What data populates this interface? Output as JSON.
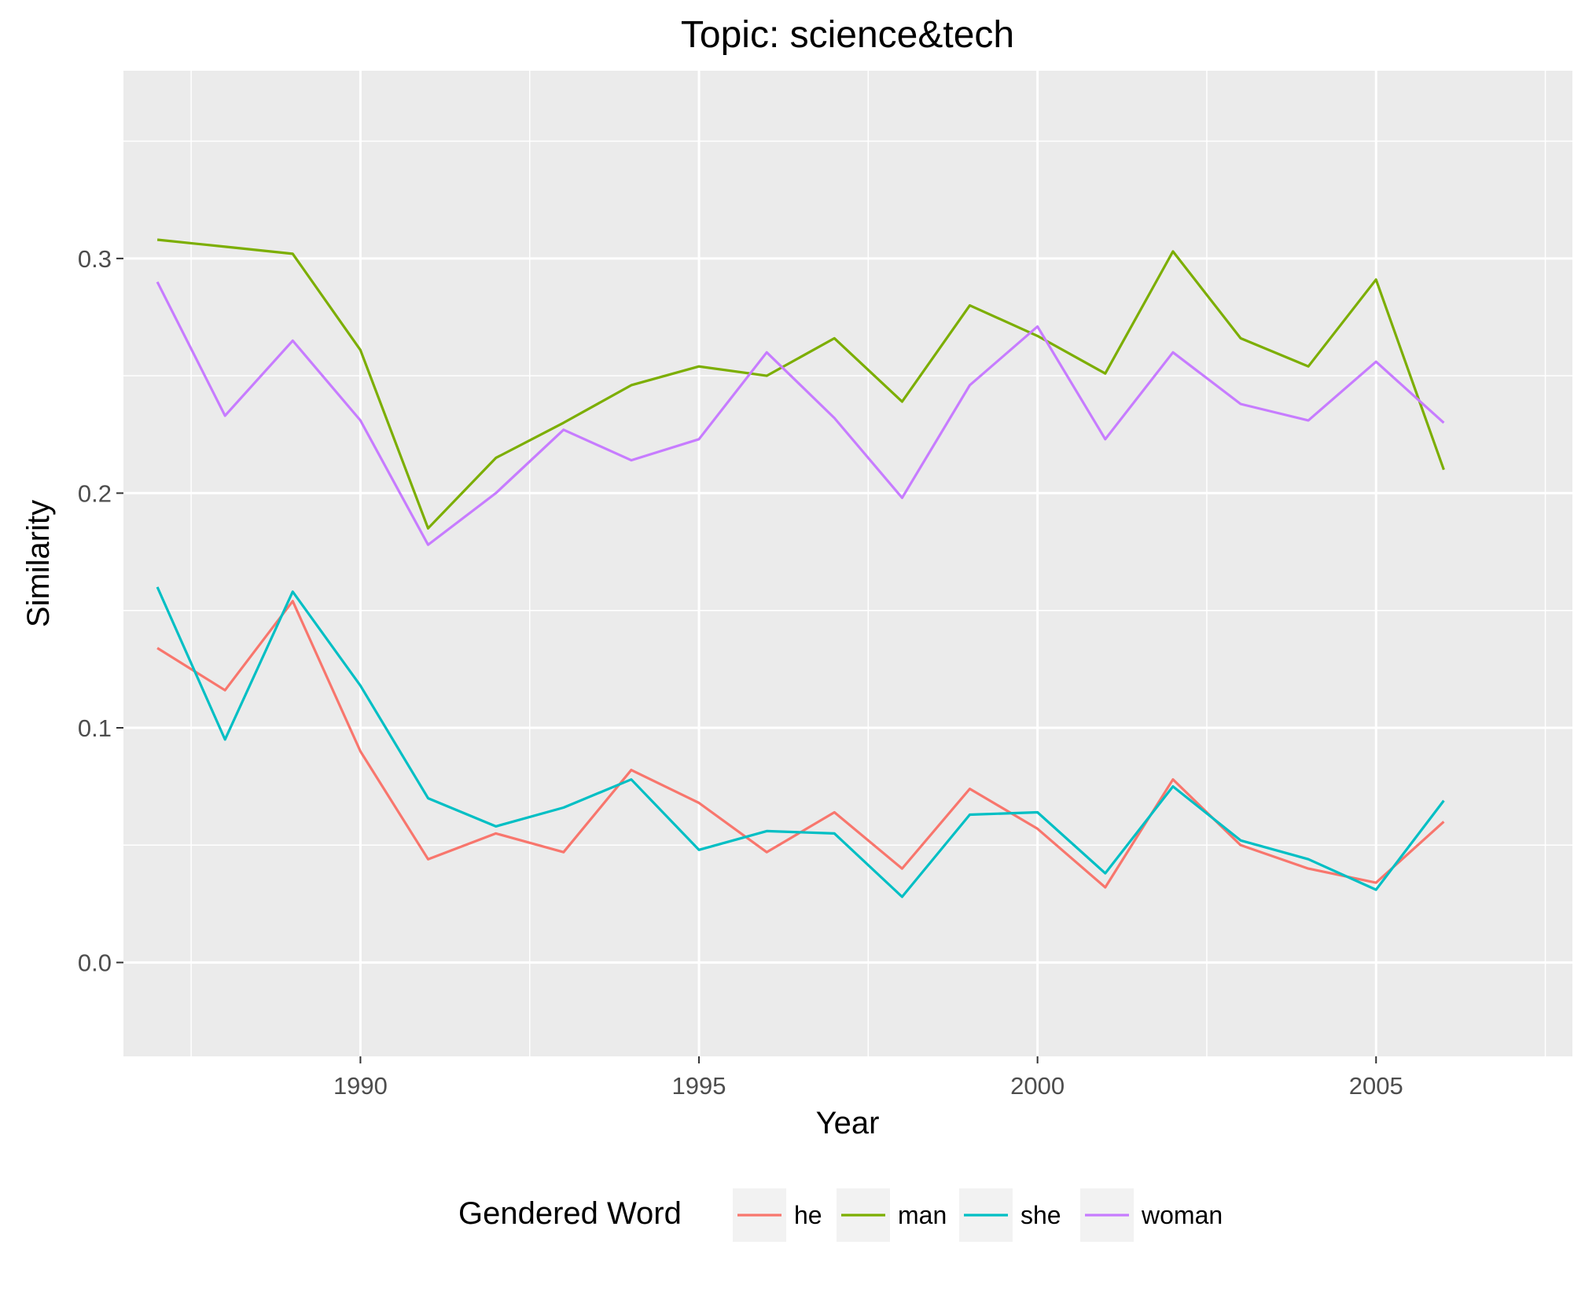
{
  "chart_data": {
    "type": "line",
    "title": "Topic: science&tech",
    "xlabel": "Year",
    "ylabel": "Similarity",
    "xlim": [
      1986.5,
      2007.9
    ],
    "ylim": [
      -0.04,
      0.38
    ],
    "x_ticks": [
      1990,
      1995,
      2000,
      2005
    ],
    "x_tick_labels": [
      "1990",
      "1995",
      "2000",
      "2005"
    ],
    "y_ticks": [
      0.0,
      0.1,
      0.2,
      0.3
    ],
    "y_tick_labels": [
      "0.0",
      "0.1",
      "0.2",
      "0.3"
    ],
    "grid": true,
    "legend": {
      "title": "Gendered Word",
      "placement": "bottom"
    },
    "x": [
      1987,
      1988,
      1989,
      1990,
      1991,
      1992,
      1993,
      1994,
      1995,
      1996,
      1997,
      1998,
      1999,
      2000,
      2001,
      2002,
      2003,
      2004,
      2005,
      2006
    ],
    "series": [
      {
        "name": "he",
        "color": "#F8766D",
        "values": [
          0.134,
          0.116,
          0.154,
          0.09,
          0.044,
          0.055,
          0.047,
          0.082,
          0.068,
          0.047,
          0.064,
          0.04,
          0.074,
          0.057,
          0.032,
          0.078,
          0.05,
          0.04,
          0.034,
          0.06
        ]
      },
      {
        "name": "man",
        "color": "#7CAE00",
        "values": [
          0.308,
          0.305,
          0.302,
          0.261,
          0.185,
          0.215,
          0.23,
          0.246,
          0.254,
          0.25,
          0.266,
          0.239,
          0.28,
          0.267,
          0.251,
          0.303,
          0.266,
          0.254,
          0.291,
          0.21
        ]
      },
      {
        "name": "she",
        "color": "#00BFC4",
        "values": [
          0.16,
          0.095,
          0.158,
          0.118,
          0.07,
          0.058,
          0.066,
          0.078,
          0.048,
          0.056,
          0.055,
          0.028,
          0.063,
          0.064,
          0.038,
          0.075,
          0.052,
          0.044,
          0.031,
          0.069
        ]
      },
      {
        "name": "woman",
        "color": "#C77CFF",
        "values": [
          0.29,
          0.233,
          0.265,
          0.231,
          0.178,
          0.2,
          0.227,
          0.214,
          0.223,
          0.26,
          0.232,
          0.198,
          0.246,
          0.271,
          0.223,
          0.26,
          0.238,
          0.231,
          0.256,
          0.23
        ]
      }
    ]
  }
}
